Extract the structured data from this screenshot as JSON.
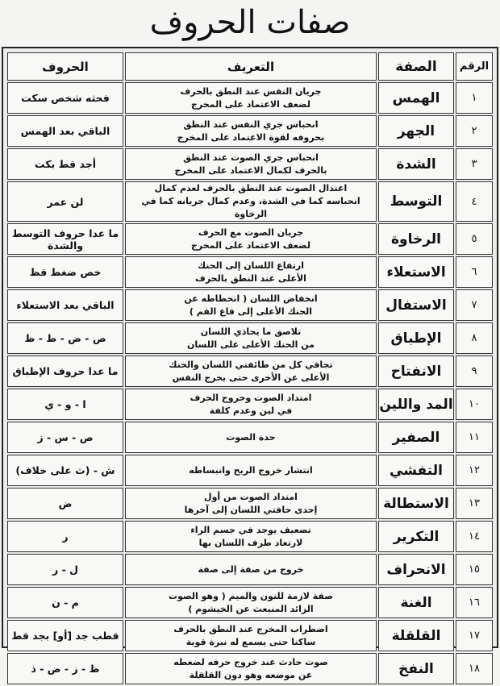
{
  "title": "صفات الحروف",
  "headers": {
    "number": "الرقم",
    "sifa": "الصفة",
    "definition": "التعريف",
    "letters": "الحروف"
  },
  "colors": {
    "header_text": "#d3232a",
    "text": "#111111",
    "border": "#333333"
  },
  "rows": [
    {
      "number": "١",
      "sifa": "الهمس",
      "def1": "جريان النفس عند النطق بالحرف",
      "def2": "لضعف الاعتماد على المخرج",
      "letters": "فحثه شخص سكت"
    },
    {
      "number": "٢",
      "sifa": "الجهر",
      "def1": "انحباس جري النفس عند النطق",
      "def2": "بحروفه لقوة الاعتماد على المخرج",
      "letters": "الباقي بعد الهمس"
    },
    {
      "number": "٣",
      "sifa": "الشدة",
      "def1": "انحباس جري الصوت عند النطق",
      "def2": "بالحرف لكمال الاعتماد على المخرج",
      "letters": "أجد قط بكت"
    },
    {
      "number": "٤",
      "sifa": "التوسط",
      "def1": "اعتدال الصوت عند النطق بالحرف لعدم كمال",
      "def2": "انحباسه كما في الشدة، وعدم كمال جريانه كما في الرخاوة",
      "letters": "لن عمر"
    },
    {
      "number": "٥",
      "sifa": "الرخاوة",
      "def1": "جريان الصوت مع الحرف",
      "def2": "لضعف الاعتماد على المخرج",
      "letters": "ما عدا حروف التوسط والشدة"
    },
    {
      "number": "٦",
      "sifa": "الاستعلاء",
      "def1": "ارتفاع اللسان إلى الحنك",
      "def2": "الأعلى عند النطق بالحرف",
      "letters": "خص ضغط قظ"
    },
    {
      "number": "٧",
      "sifa": "الاستفال",
      "def1": "انخفاض اللسان ( انحطاطه عن",
      "def2": "الحنك الأعلى إلى قاع الفم )",
      "letters": "الباقي بعد الاستعلاء"
    },
    {
      "number": "٨",
      "sifa": "الإطباق",
      "def1": "تلاصق ما يحاذي اللسان",
      "def2": "من الحنك الأعلى على اللسان",
      "letters": "ص - ض - ط - ظ"
    },
    {
      "number": "٩",
      "sifa": "الانفتاح",
      "def1": "تجافي كل من طائفتي اللسان والحنك",
      "def2": "الأعلى عن الأخرى حتى يخرج النفس",
      "letters": "ما عدا حروف الإطباق"
    },
    {
      "number": "١٠",
      "sifa": "المد واللين",
      "def1": "امتداد الصوت وخروج الحرف",
      "def2": "في لين وعدم كلفة",
      "letters": "ا - و - ي"
    },
    {
      "number": "١١",
      "sifa": "الصفير",
      "def1": "حدة الصوت",
      "def2": "",
      "letters": "ص - س - ز"
    },
    {
      "number": "١٢",
      "sifa": "التفشي",
      "def1": "انتشار خروج الريح وانبساطه",
      "def2": "",
      "letters": "ش - (ث على خلاف)"
    },
    {
      "number": "١٣",
      "sifa": "الاستطالة",
      "def1": "امتداد الصوت من أول",
      "def2": "إحدى حافتي اللسان إلى آخرها",
      "letters": "ض"
    },
    {
      "number": "١٤",
      "sifa": "التكرير",
      "def1": "تضعيف يوجد في جسم الراء",
      "def2": "لارتعاد طرف اللسان بها",
      "letters": "ر"
    },
    {
      "number": "١٥",
      "sifa": "الانحراف",
      "def1": "خروج من صفة إلى صفة",
      "def2": "",
      "letters": "ل - ر"
    },
    {
      "number": "١٦",
      "sifa": "الغنة",
      "def1": "صفة لازمة للنون والميم ( وهو الصوت",
      "def2": "الزائد المنبعث عن الخيشوم )",
      "letters": "م - ن"
    },
    {
      "number": "١٧",
      "sifa": "القلقلة",
      "def1": "اضطراب المخرج عند النطق بالحرف",
      "def2": "ساكنا حتى يسمع له نبرة قوية",
      "letters": "قطب جد [أو] بجد قط"
    },
    {
      "number": "١٨",
      "sifa": "النفخ",
      "def1": "صوت حادث عند خروج حرفه لضغطه",
      "def2": "عن موضعه وهو دون القلقلة",
      "letters": "ظ - ز - ض - ذ"
    }
  ]
}
